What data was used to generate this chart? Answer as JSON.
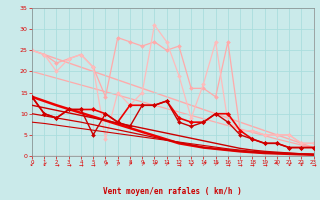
{
  "x": [
    0,
    1,
    2,
    3,
    4,
    5,
    6,
    7,
    8,
    9,
    10,
    11,
    12,
    13,
    14,
    15,
    16,
    17,
    18,
    19,
    20,
    21,
    22,
    23
  ],
  "series": [
    {
      "name": "light_spike1",
      "color": "#ffaaaa",
      "linewidth": 0.9,
      "marker": "D",
      "markersize": 2.0,
      "zorder": 2,
      "y": [
        25,
        24,
        22,
        23,
        24,
        21,
        14,
        28,
        27,
        26,
        27,
        25,
        26,
        16,
        16,
        14,
        27,
        6,
        6,
        5,
        5,
        5,
        3,
        3
      ]
    },
    {
      "name": "light_spike2",
      "color": "#ffbbbb",
      "linewidth": 0.9,
      "marker": "D",
      "markersize": 2.0,
      "zorder": 2,
      "y": [
        25,
        24,
        20,
        23,
        24,
        21,
        4,
        15,
        12,
        15,
        31,
        27,
        19,
        9,
        17,
        27,
        8,
        6,
        6,
        5,
        5,
        5,
        3,
        3
      ]
    },
    {
      "name": "light_diag_top",
      "color": "#ffaaaa",
      "linewidth": 1.0,
      "marker": null,
      "markersize": 0,
      "zorder": 1,
      "y": [
        25,
        24.0,
        23.0,
        22.0,
        21.0,
        20.0,
        19.0,
        18.0,
        17.0,
        16.0,
        15.0,
        14.0,
        13.0,
        12.0,
        11.0,
        10.0,
        9.0,
        8.0,
        7.0,
        6.0,
        5.0,
        4.0,
        3.0,
        2.0
      ]
    },
    {
      "name": "light_diag_mid",
      "color": "#ffaaaa",
      "linewidth": 0.9,
      "marker": null,
      "markersize": 0,
      "zorder": 1,
      "y": [
        20,
        19.2,
        18.4,
        17.6,
        16.8,
        16.0,
        15.2,
        14.4,
        13.6,
        12.8,
        12.0,
        11.2,
        10.4,
        9.6,
        8.8,
        8.0,
        7.2,
        6.4,
        5.6,
        4.8,
        4.0,
        3.3,
        2.6,
        2.0
      ]
    },
    {
      "name": "red_line1",
      "color": "#ee0000",
      "linewidth": 1.2,
      "marker": "D",
      "markersize": 2.2,
      "zorder": 4,
      "y": [
        14,
        10,
        9,
        11,
        11,
        11,
        10,
        8,
        12,
        12,
        12,
        13,
        9,
        8,
        8,
        10,
        10,
        6,
        4,
        3,
        3,
        2,
        2,
        2
      ]
    },
    {
      "name": "red_line2",
      "color": "#cc0000",
      "linewidth": 1.0,
      "marker": "D",
      "markersize": 2.0,
      "zorder": 4,
      "y": [
        14,
        10,
        9,
        11,
        11,
        5,
        10,
        8,
        7,
        12,
        12,
        13,
        8,
        7,
        8,
        10,
        8,
        5,
        4,
        3,
        3,
        2,
        2,
        2
      ]
    },
    {
      "name": "red_diag_bold",
      "color": "#ee0000",
      "linewidth": 1.8,
      "marker": null,
      "markersize": 0,
      "zorder": 3,
      "y": [
        14,
        13.0,
        12.0,
        11.1,
        10.2,
        9.3,
        8.4,
        7.5,
        6.6,
        5.7,
        4.8,
        3.9,
        3.0,
        2.5,
        2.0,
        1.7,
        1.4,
        1.1,
        0.9,
        0.7,
        0.6,
        0.5,
        0.4,
        0.3
      ]
    },
    {
      "name": "red_diag2",
      "color": "#cc0000",
      "linewidth": 1.0,
      "marker": null,
      "markersize": 0,
      "zorder": 3,
      "y": [
        12,
        11.4,
        10.8,
        10.2,
        9.6,
        9.0,
        8.4,
        7.8,
        7.2,
        6.6,
        6.0,
        5.4,
        4.8,
        4.2,
        3.6,
        3.0,
        2.4,
        1.8,
        1.4,
        1.1,
        0.9,
        0.7,
        0.5,
        0.4
      ]
    },
    {
      "name": "red_diag3",
      "color": "#cc0000",
      "linewidth": 0.9,
      "marker": null,
      "markersize": 0,
      "zorder": 3,
      "y": [
        10,
        9.5,
        9.0,
        8.5,
        8.0,
        7.4,
        6.8,
        6.2,
        5.6,
        5.0,
        4.4,
        3.8,
        3.2,
        2.6,
        2.0,
        1.7,
        1.4,
        1.1,
        0.9,
        0.7,
        0.6,
        0.5,
        0.4,
        0.3
      ]
    },
    {
      "name": "red_diag4",
      "color": "#cc0000",
      "linewidth": 0.8,
      "marker": null,
      "markersize": 0,
      "zorder": 3,
      "y": [
        8,
        7.7,
        7.3,
        6.9,
        6.5,
        6.1,
        5.7,
        5.3,
        4.9,
        4.5,
        4.1,
        3.7,
        3.3,
        2.9,
        2.5,
        2.1,
        1.7,
        1.4,
        1.1,
        0.9,
        0.7,
        0.6,
        0.5,
        0.4
      ]
    }
  ],
  "wind_arrow_types": [
    "sw",
    "sw",
    "e",
    "e",
    "e",
    "e",
    "ne",
    "ne",
    "ne",
    "ne",
    "ne",
    "ne",
    "e",
    "sw",
    "ne",
    "ne",
    "e",
    "e",
    "e",
    "e",
    "nw",
    "sw",
    "sw",
    "e"
  ],
  "ylim": [
    0,
    35
  ],
  "xlim": [
    0,
    23
  ],
  "yticks": [
    0,
    5,
    10,
    15,
    20,
    25,
    30,
    35
  ],
  "xticks": [
    0,
    1,
    2,
    3,
    4,
    5,
    6,
    7,
    8,
    9,
    10,
    11,
    12,
    13,
    14,
    15,
    16,
    17,
    18,
    19,
    20,
    21,
    22,
    23
  ],
  "xlabel": "Vent moyen/en rafales ( km/h )",
  "bg_color": "#caeaea",
  "grid_color": "#aadddd",
  "tick_color": "#dd0000",
  "label_color": "#cc0000",
  "spine_color": "#888888"
}
